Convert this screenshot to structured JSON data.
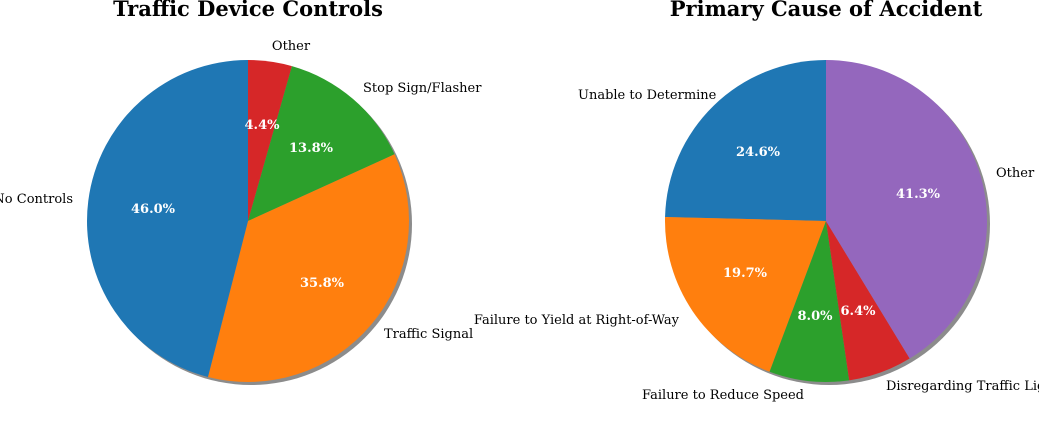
{
  "chart_data": [
    {
      "type": "pie",
      "title": "Traffic Device Controls",
      "start_angle_deg": 90,
      "direction": "clockwise",
      "shadow": true,
      "slices": [
        {
          "label": "Other",
          "value": 4.4,
          "pct_label": "4.4%",
          "color": "#d62728"
        },
        {
          "label": "Stop Sign/Flasher",
          "value": 13.8,
          "pct_label": "13.8%",
          "color": "#2ca02c"
        },
        {
          "label": "Traffic Signal",
          "value": 35.8,
          "pct_label": "35.8%",
          "color": "#ff7f0e"
        },
        {
          "label": "No Controls",
          "value": 46.0,
          "pct_label": "46.0%",
          "color": "#1f77b4"
        }
      ]
    },
    {
      "type": "pie",
      "title": "Primary Cause of Accident",
      "start_angle_deg": 90,
      "direction": "counterclockwise",
      "shadow": true,
      "slices": [
        {
          "label": "Unable to Determine",
          "value": 24.6,
          "pct_label": "24.6%",
          "color": "#1f77b4"
        },
        {
          "label": "Failure to Yield at Right-of-Way",
          "value": 19.7,
          "pct_label": "19.7%",
          "color": "#ff7f0e"
        },
        {
          "label": "Failure to Reduce Speed",
          "value": 8.0,
          "pct_label": "8.0%",
          "color": "#2ca02c"
        },
        {
          "label": "Disregarding Traffic Light",
          "value": 6.4,
          "pct_label": "6.4%",
          "color": "#d62728"
        },
        {
          "label": "Other",
          "value": 41.3,
          "pct_label": "41.3%",
          "color": "#9467bd"
        }
      ]
    }
  ]
}
